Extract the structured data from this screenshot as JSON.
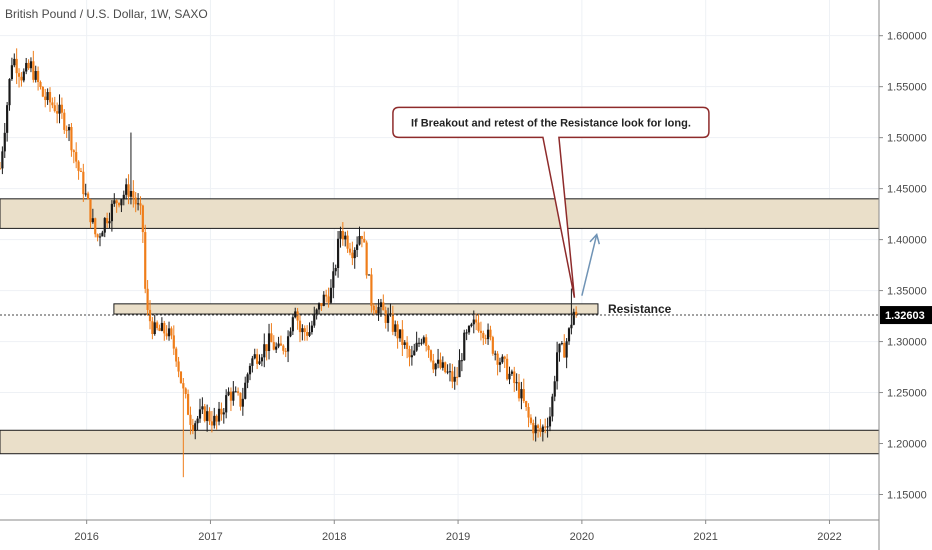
{
  "chart_data": {
    "type": "candlestick",
    "title": "British Pound / U.S. Dollar, 1W, SAXO",
    "xlim": [
      2015.3,
      2022.4
    ],
    "ylim": [
      1.125,
      1.635
    ],
    "y_ticks": [
      {
        "value": 1.15,
        "label": "1.15000"
      },
      {
        "value": 1.2,
        "label": "1.20000"
      },
      {
        "value": 1.25,
        "label": "1.25000"
      },
      {
        "value": 1.3,
        "label": "1.30000"
      },
      {
        "value": 1.35,
        "label": "1.35000"
      },
      {
        "value": 1.4,
        "label": "1.40000"
      },
      {
        "value": 1.45,
        "label": "1.45000"
      },
      {
        "value": 1.5,
        "label": "1.50000"
      },
      {
        "value": 1.55,
        "label": "1.55000"
      },
      {
        "value": 1.6,
        "label": "1.60000"
      }
    ],
    "x_ticks": [
      {
        "value": 2016,
        "label": "2016"
      },
      {
        "value": 2017,
        "label": "2017"
      },
      {
        "value": 2018,
        "label": "2018"
      },
      {
        "value": 2019,
        "label": "2019"
      },
      {
        "value": 2020,
        "label": "2020"
      },
      {
        "value": 2021,
        "label": "2021"
      },
      {
        "value": 2022,
        "label": "2022"
      }
    ],
    "grid": true,
    "colors": {
      "up": "#1a1a1a",
      "down": "#ef7d1a",
      "zone_fill": "#eadfc9",
      "arrow": "#6f93b5",
      "callout_border": "#8e2b2b",
      "price_label_bg": "#000000"
    },
    "ohlc_anchors": [
      [
        2015.3,
        1.47
      ],
      [
        2015.4,
        1.58
      ],
      [
        2015.48,
        1.56
      ],
      [
        2015.55,
        1.57
      ],
      [
        2015.65,
        1.54
      ],
      [
        2015.75,
        1.53
      ],
      [
        2015.85,
        1.51
      ],
      [
        2015.93,
        1.47
      ],
      [
        2016.02,
        1.43
      ],
      [
        2016.08,
        1.4
      ],
      [
        2016.15,
        1.42
      ],
      [
        2016.25,
        1.44
      ],
      [
        2016.35,
        1.45
      ],
      [
        2016.45,
        1.42
      ],
      [
        2016.48,
        1.33
      ],
      [
        2016.55,
        1.31
      ],
      [
        2016.65,
        1.31
      ],
      [
        2016.72,
        1.29
      ],
      [
        2016.78,
        1.25
      ],
      [
        2016.85,
        1.22
      ],
      [
        2016.95,
        1.23
      ],
      [
        2017.05,
        1.22
      ],
      [
        2017.15,
        1.25
      ],
      [
        2017.25,
        1.24
      ],
      [
        2017.32,
        1.28
      ],
      [
        2017.4,
        1.29
      ],
      [
        2017.48,
        1.3
      ],
      [
        2017.55,
        1.29
      ],
      [
        2017.62,
        1.3
      ],
      [
        2017.68,
        1.34
      ],
      [
        2017.72,
        1.31
      ],
      [
        2017.8,
        1.31
      ],
      [
        2017.9,
        1.34
      ],
      [
        2017.98,
        1.35
      ],
      [
        2018.05,
        1.41
      ],
      [
        2018.15,
        1.39
      ],
      [
        2018.22,
        1.41
      ],
      [
        2018.3,
        1.34
      ],
      [
        2018.38,
        1.33
      ],
      [
        2018.45,
        1.32
      ],
      [
        2018.55,
        1.3
      ],
      [
        2018.62,
        1.28
      ],
      [
        2018.72,
        1.31
      ],
      [
        2018.8,
        1.28
      ],
      [
        2018.9,
        1.27
      ],
      [
        2018.98,
        1.26
      ],
      [
        2019.05,
        1.3
      ],
      [
        2019.15,
        1.32
      ],
      [
        2019.22,
        1.31
      ],
      [
        2019.3,
        1.29
      ],
      [
        2019.4,
        1.27
      ],
      [
        2019.5,
        1.25
      ],
      [
        2019.58,
        1.22
      ],
      [
        2019.66,
        1.21
      ],
      [
        2019.75,
        1.23
      ],
      [
        2019.8,
        1.29
      ],
      [
        2019.85,
        1.29
      ],
      [
        2019.9,
        1.31
      ],
      [
        2019.93,
        1.33
      ],
      [
        2019.96,
        1.326
      ]
    ],
    "zones": [
      {
        "y_low": 1.411,
        "y_high": 1.44,
        "x_from": 2015.3,
        "x_to": 2022.4
      },
      {
        "y_low": 1.327,
        "y_high": 1.337,
        "x_from": 2016.22,
        "x_to": 2020.13
      },
      {
        "y_low": 1.19,
        "y_high": 1.213,
        "x_from": 2015.3,
        "x_to": 2022.4
      }
    ],
    "resistance_label": "Resistance",
    "resistance_label_y": 1.332,
    "current_price": {
      "value": 1.326,
      "label": "1.32603"
    },
    "annotation": {
      "text": "If Breakout and retest of the Resistance look for long.",
      "x": 2019.75,
      "y": 1.515,
      "pointer_to": [
        2019.94,
        1.343
      ]
    },
    "projection_arrow": {
      "from": [
        2020.0,
        1.345
      ],
      "to": [
        2020.12,
        1.405
      ]
    }
  }
}
